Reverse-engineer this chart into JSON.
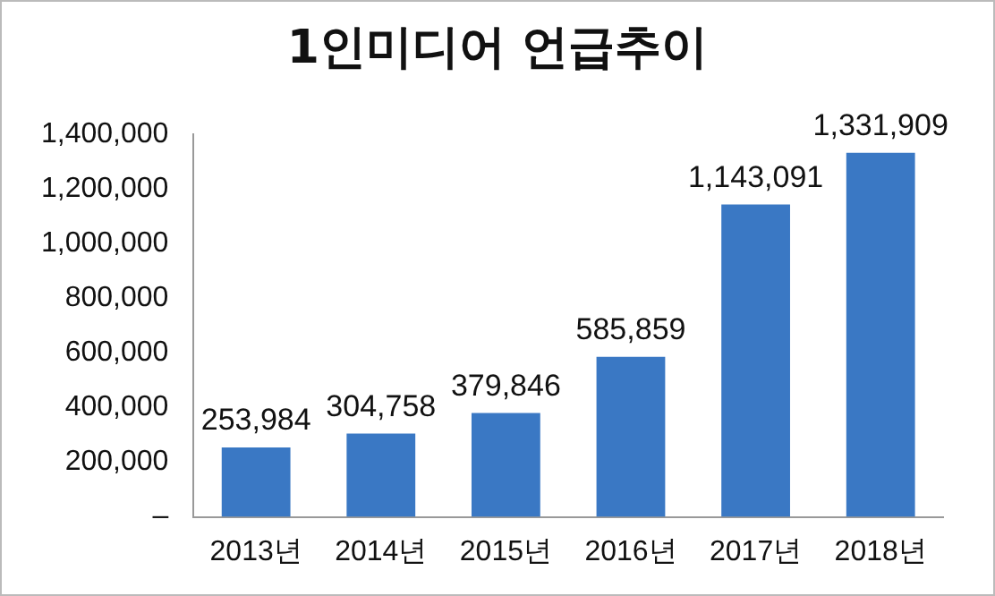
{
  "chart_data": {
    "type": "bar",
    "title": "1인미디어 언급추이",
    "categories": [
      "2013년",
      "2014년",
      "2015년",
      "2016년",
      "2017년",
      "2018년"
    ],
    "values": [
      253984,
      304758,
      379846,
      585859,
      1143091,
      1331909
    ],
    "value_labels": [
      "253,984",
      "304,758",
      "379,846",
      "585,859",
      "1,143,091",
      "1,331,909"
    ],
    "color": "#3a78c4",
    "ylim": [
      0,
      1400000
    ],
    "yticks": [
      {
        "value": 0,
        "label": "–"
      },
      {
        "value": 200000,
        "label": "200,000"
      },
      {
        "value": 400000,
        "label": "400,000"
      },
      {
        "value": 600000,
        "label": "600,000"
      },
      {
        "value": 800000,
        "label": "800,000"
      },
      {
        "value": 1000000,
        "label": "1,000,000"
      },
      {
        "value": 1200000,
        "label": "1,200,000"
      },
      {
        "value": 1400000,
        "label": "1,400,000"
      }
    ],
    "grid": false,
    "legend": false
  }
}
